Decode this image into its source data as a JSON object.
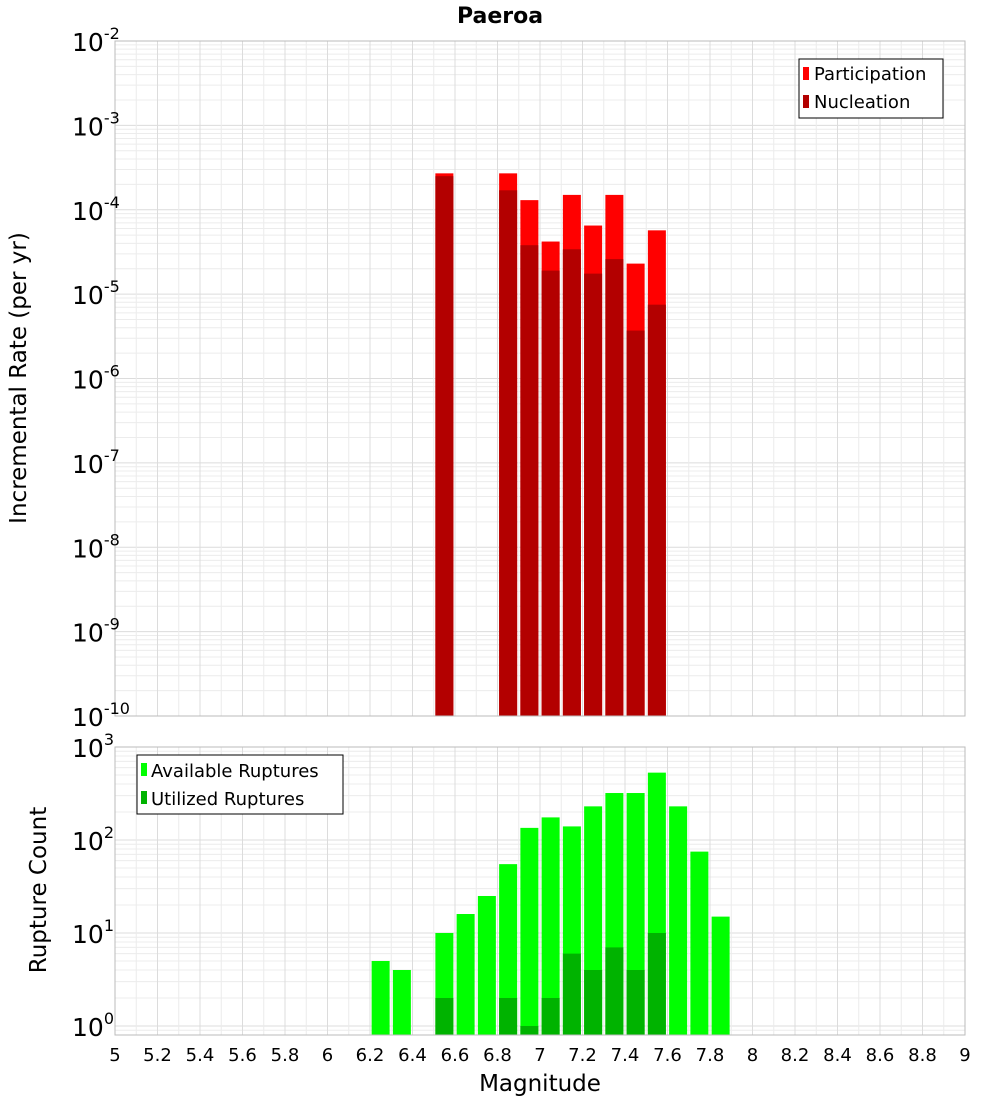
{
  "chart_data": [
    {
      "type": "bar",
      "title": "Paeroa",
      "xlabel": "",
      "ylabel": "Incremental Rate (per yr)",
      "xlim": [
        5,
        9
      ],
      "ylim": [
        1e-10,
        0.01
      ],
      "y_scale": "log",
      "y_ticks": [
        {
          "base": "10",
          "exp": "-10"
        },
        {
          "base": "10",
          "exp": "-9"
        },
        {
          "base": "10",
          "exp": "-8"
        },
        {
          "base": "10",
          "exp": "-7"
        },
        {
          "base": "10",
          "exp": "-6"
        },
        {
          "base": "10",
          "exp": "-5"
        },
        {
          "base": "10",
          "exp": "-4"
        },
        {
          "base": "10",
          "exp": "-3"
        },
        {
          "base": "10",
          "exp": "-2"
        }
      ],
      "grid": true,
      "legend_position": "top-right",
      "series": [
        {
          "name": "Participation",
          "color": "#ff0000",
          "x": [
            6.55,
            6.85,
            6.95,
            7.05,
            7.15,
            7.25,
            7.35,
            7.45,
            7.55
          ],
          "values": [
            0.00027,
            0.00027,
            0.00013,
            4.2e-05,
            0.00015,
            6.5e-05,
            0.00015,
            2.3e-05,
            5.7e-05
          ]
        },
        {
          "name": "Nucleation",
          "color": "#b30000",
          "x": [
            6.55,
            6.85,
            6.95,
            7.05,
            7.15,
            7.25,
            7.35,
            7.45,
            7.55
          ],
          "values": [
            0.00025,
            0.00017,
            3.8e-05,
            1.9e-05,
            3.4e-05,
            1.75e-05,
            2.6e-05,
            3.7e-06,
            7.5e-06
          ]
        }
      ]
    },
    {
      "type": "bar",
      "title": "",
      "xlabel": "Magnitude",
      "ylabel": "Rupture Count",
      "xlim": [
        5,
        9
      ],
      "ylim": [
        0.8,
        1000
      ],
      "y_scale": "log",
      "x_ticks": [
        "5",
        "5.2",
        "5.4",
        "5.6",
        "5.8",
        "6",
        "6.2",
        "6.4",
        "6.6",
        "6.8",
        "7",
        "7.2",
        "7.4",
        "7.6",
        "7.8",
        "8",
        "8.2",
        "8.4",
        "8.6",
        "8.8",
        "9"
      ],
      "y_ticks": [
        {
          "base": "10",
          "exp": "0"
        },
        {
          "base": "10",
          "exp": "1"
        },
        {
          "base": "10",
          "exp": "2"
        },
        {
          "base": "10",
          "exp": "3"
        }
      ],
      "grid": true,
      "legend_position": "top-left",
      "series": [
        {
          "name": "Available Ruptures",
          "color": "#00ff00",
          "x": [
            6.25,
            6.35,
            6.55,
            6.65,
            6.75,
            6.85,
            6.95,
            7.05,
            7.15,
            7.25,
            7.35,
            7.45,
            7.55,
            7.65,
            7.75,
            7.85
          ],
          "values": [
            5,
            4,
            10,
            16,
            25,
            55,
            135,
            175,
            140,
            230,
            320,
            320,
            530,
            230,
            75,
            15
          ]
        },
        {
          "name": "Utilized Ruptures",
          "color": "#00b300",
          "x": [
            6.55,
            6.85,
            6.95,
            7.05,
            7.15,
            7.25,
            7.35,
            7.45,
            7.55
          ],
          "values": [
            2,
            2,
            1,
            2,
            6,
            4,
            7,
            4,
            10
          ]
        }
      ]
    }
  ]
}
